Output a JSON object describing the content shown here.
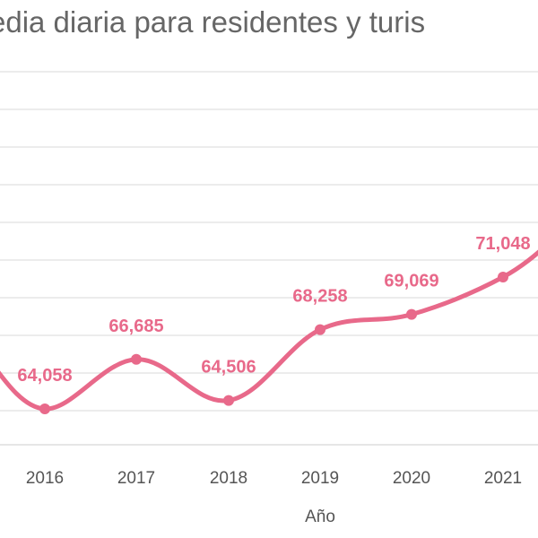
{
  "chart_data": {
    "type": "line",
    "title": "edia diaria para residentes y turis",
    "xlabel": "Año",
    "ylabel": "",
    "x": [
      "2016",
      "2017",
      "2018",
      "2019",
      "2020",
      "2021"
    ],
    "series": [
      {
        "values": [
          64058,
          66685,
          64506,
          68258,
          69069,
          71048
        ],
        "labels": [
          "64,058",
          "66,685",
          "64,506",
          "68,258",
          "69,069",
          "71,048"
        ]
      }
    ],
    "grid": true,
    "legend": "none",
    "colors": {
      "line": "#e8698a",
      "grid": "#d9d9d9",
      "text": "#555555"
    }
  }
}
